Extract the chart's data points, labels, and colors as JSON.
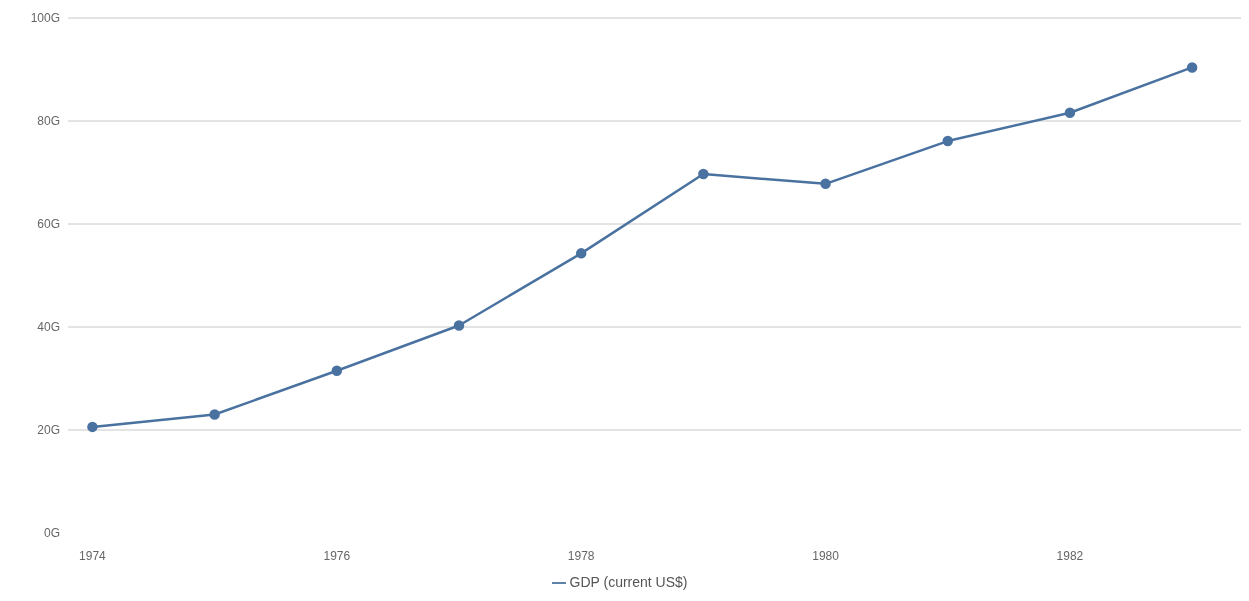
{
  "chart_data": {
    "type": "line",
    "x": [
      1974,
      1975,
      1976,
      1977,
      1978,
      1979,
      1980,
      1981,
      1982,
      1983
    ],
    "series": [
      {
        "name": "GDP (current US$)",
        "color": "#4a72a0",
        "values": [
          20.6,
          23.0,
          31.5,
          40.3,
          54.3,
          69.7,
          67.8,
          76.1,
          81.6,
          90.4
        ]
      }
    ],
    "xlim": [
      1973.8,
      1983.4
    ],
    "xticks": [
      1974,
      1976,
      1978,
      1980,
      1982
    ],
    "ylim": [
      0,
      100
    ],
    "yticks": [
      {
        "value": 0,
        "label": "0G"
      },
      {
        "value": 20,
        "label": "20G"
      },
      {
        "value": 40,
        "label": "40G"
      },
      {
        "value": 60,
        "label": "60G"
      },
      {
        "value": 80,
        "label": "80G"
      },
      {
        "value": 100,
        "label": "100G"
      }
    ],
    "grid": "y",
    "legend": "bottom",
    "marker": "circle",
    "line_style": "solid"
  }
}
